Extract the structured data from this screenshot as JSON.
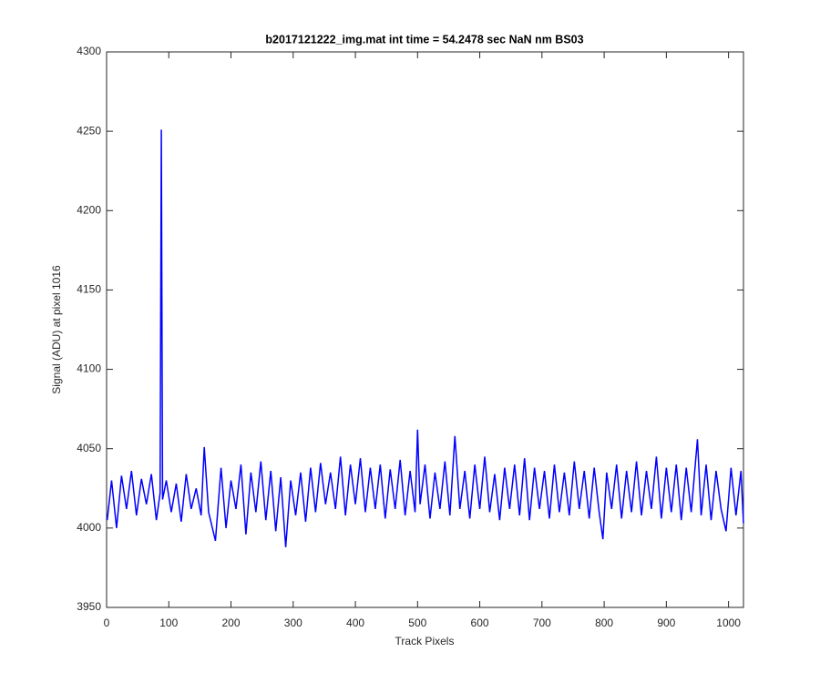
{
  "chart_data": {
    "type": "line",
    "title": "b2017121222_img.mat int time = 54.2478 sec  NaN nm BS03",
    "x_label": "Track Pixels",
    "y_label": "Signal (ADU) at pixel 1016",
    "xlim": [
      0,
      1024
    ],
    "xticks": [
      0,
      100,
      200,
      300,
      400,
      500,
      600,
      700,
      800,
      900,
      1000
    ],
    "ylim": [
      3950,
      4300
    ],
    "yticks": [
      3950,
      4000,
      4050,
      4100,
      4150,
      4200,
      4250,
      4300
    ],
    "grid": false,
    "x": [
      1,
      8,
      16,
      24,
      32,
      40,
      48,
      56,
      64,
      72,
      80,
      86,
      88,
      90,
      96,
      104,
      112,
      120,
      128,
      136,
      144,
      152,
      157,
      164,
      175,
      184,
      192,
      200,
      208,
      216,
      224,
      232,
      240,
      248,
      256,
      264,
      272,
      280,
      288,
      296,
      304,
      312,
      320,
      328,
      336,
      344,
      352,
      360,
      368,
      376,
      384,
      392,
      400,
      408,
      416,
      424,
      432,
      440,
      448,
      456,
      464,
      472,
      480,
      488,
      496,
      500,
      504,
      512,
      520,
      528,
      536,
      544,
      552,
      560,
      568,
      576,
      584,
      592,
      600,
      608,
      616,
      624,
      632,
      640,
      648,
      656,
      664,
      672,
      680,
      688,
      696,
      704,
      712,
      720,
      728,
      736,
      744,
      752,
      760,
      768,
      776,
      784,
      792,
      798,
      804,
      812,
      820,
      828,
      836,
      844,
      852,
      860,
      868,
      876,
      884,
      892,
      900,
      908,
      916,
      924,
      932,
      940,
      950,
      956,
      964,
      972,
      980,
      988,
      996,
      1004,
      1012,
      1020,
      1024
    ],
    "series": [
      {
        "name": "signal",
        "color": "#0000ff",
        "values": [
          4005,
          4030,
          4000,
          4033,
          4012,
          4036,
          4008,
          4031,
          4015,
          4034,
          4005,
          4022,
          4251,
          4018,
          4030,
          4010,
          4028,
          4004,
          4034,
          4012,
          4025,
          4008,
          4051,
          4010,
          3992,
          4038,
          4000,
          4030,
          4012,
          4040,
          3996,
          4035,
          4010,
          4042,
          4005,
          4036,
          3998,
          4032,
          3988,
          4030,
          4008,
          4035,
          4004,
          4038,
          4010,
          4041,
          4015,
          4035,
          4012,
          4045,
          4008,
          4040,
          4015,
          4044,
          4010,
          4038,
          4012,
          4040,
          4006,
          4037,
          4012,
          4043,
          4008,
          4036,
          4010,
          4062,
          4015,
          4040,
          4006,
          4035,
          4012,
          4042,
          4008,
          4058,
          4012,
          4036,
          4006,
          4040,
          4012,
          4045,
          4010,
          4034,
          4005,
          4038,
          4012,
          4040,
          4008,
          4044,
          4005,
          4038,
          4012,
          4036,
          4006,
          4040,
          4010,
          4035,
          4008,
          4042,
          4012,
          4036,
          4006,
          4038,
          4010,
          3993,
          4035,
          4012,
          4040,
          4006,
          4036,
          4010,
          4042,
          4008,
          4036,
          4012,
          4045,
          4006,
          4038,
          4010,
          4040,
          4005,
          4038,
          4010,
          4056,
          4008,
          4040,
          4005,
          4036,
          4012,
          3998,
          4038,
          4008,
          4036,
          4003
        ]
      }
    ]
  }
}
